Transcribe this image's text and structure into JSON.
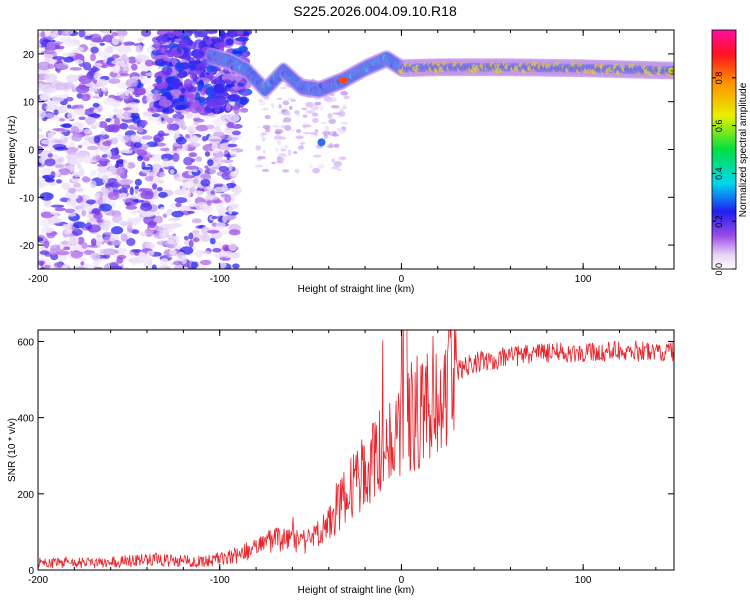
{
  "title": "S225.2026.004.09.10.R18",
  "chart_data": [
    {
      "type": "heatmap",
      "xlabel": "Height of straight line (km)",
      "ylabel": "Frequency (Hz)",
      "xlim": [
        -200,
        150
      ],
      "ylim": [
        -25,
        25
      ],
      "xticks": [
        -200,
        -100,
        0,
        100
      ],
      "yticks": [
        -20,
        -10,
        0,
        10,
        20
      ],
      "colorbar": {
        "label": "Normalized spectral amplitude",
        "range": [
          0,
          1
        ],
        "ticks": [
          0.0,
          0.2,
          0.4,
          0.6,
          0.8
        ]
      },
      "ridge": [
        {
          "x": -105,
          "y": 19.5
        },
        {
          "x": -95,
          "y": 18.5
        },
        {
          "x": -85,
          "y": 16.5
        },
        {
          "x": -75,
          "y": 12.5
        },
        {
          "x": -65,
          "y": 16.5
        },
        {
          "x": -55,
          "y": 13
        },
        {
          "x": -45,
          "y": 12.5
        },
        {
          "x": -32,
          "y": 14.5
        },
        {
          "x": -20,
          "y": 17
        },
        {
          "x": -8,
          "y": 19
        },
        {
          "x": 0,
          "y": 17
        },
        {
          "x": 20,
          "y": 17.2
        },
        {
          "x": 60,
          "y": 17.2
        },
        {
          "x": 100,
          "y": 17
        },
        {
          "x": 150,
          "y": 16.5
        }
      ]
    },
    {
      "type": "line",
      "xlabel": "Height of straight line (km)",
      "ylabel": "SNR (10 * v/v)",
      "xlim": [
        -200,
        150
      ],
      "ylim": [
        0,
        630
      ],
      "xticks": [
        -200,
        -100,
        0,
        100
      ],
      "yticks": [
        0,
        200,
        400,
        600
      ],
      "color": "#e8232b",
      "envelope": [
        {
          "x": -200,
          "y": 18
        },
        {
          "x": -160,
          "y": 20
        },
        {
          "x": -140,
          "y": 28
        },
        {
          "x": -110,
          "y": 22
        },
        {
          "x": -90,
          "y": 38
        },
        {
          "x": -70,
          "y": 80
        },
        {
          "x": -50,
          "y": 75
        },
        {
          "x": -40,
          "y": 120
        },
        {
          "x": -30,
          "y": 200
        },
        {
          "x": -20,
          "y": 260
        },
        {
          "x": -10,
          "y": 320
        },
        {
          "x": 0,
          "y": 380
        },
        {
          "x": 10,
          "y": 420
        },
        {
          "x": 20,
          "y": 470
        },
        {
          "x": 30,
          "y": 520
        },
        {
          "x": 40,
          "y": 545
        },
        {
          "x": 60,
          "y": 560
        },
        {
          "x": 80,
          "y": 570
        },
        {
          "x": 100,
          "y": 568
        },
        {
          "x": 120,
          "y": 575
        },
        {
          "x": 150,
          "y": 575
        }
      ]
    }
  ]
}
